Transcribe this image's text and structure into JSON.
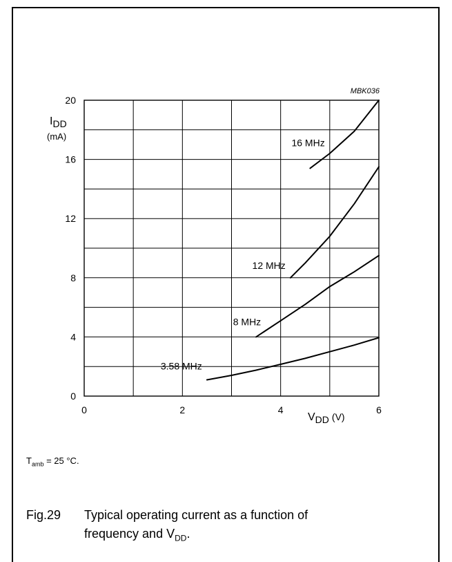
{
  "chart_data": {
    "type": "line",
    "code": "MBK036",
    "ylabel_main": "I",
    "ylabel_sub": "DD",
    "ylabel_unit": "(mA)",
    "xlabel_main": "V",
    "xlabel_sub": "DD",
    "xlabel_unit": "(V)",
    "xlim": [
      0,
      6
    ],
    "ylim": [
      0,
      20
    ],
    "x_ticks": [
      "0",
      "2",
      "4",
      "6"
    ],
    "y_ticks": [
      "0",
      "4",
      "8",
      "12",
      "16",
      "20"
    ],
    "grid": true,
    "series": [
      {
        "name": "3.58 MHz",
        "x": [
          2.5,
          3.0,
          3.5,
          4.0,
          4.5,
          5.0,
          5.5,
          6.0
        ],
        "y": [
          1.1,
          1.4,
          1.75,
          2.15,
          2.55,
          3.0,
          3.45,
          3.95
        ]
      },
      {
        "name": "8 MHz",
        "x": [
          3.5,
          4.0,
          4.5,
          5.0,
          5.5,
          6.0
        ],
        "y": [
          4.0,
          5.1,
          6.2,
          7.4,
          8.4,
          9.5
        ]
      },
      {
        "name": "12 MHz",
        "x": [
          4.2,
          4.5,
          5.0,
          5.5,
          6.0
        ],
        "y": [
          8.0,
          9.0,
          10.8,
          13.0,
          15.5
        ]
      },
      {
        "name": "16 MHz",
        "x": [
          4.6,
          5.0,
          5.5,
          6.0
        ],
        "y": [
          15.4,
          16.4,
          17.9,
          20.0
        ]
      }
    ]
  },
  "note": {
    "prefix": "T",
    "sub": "amb",
    "rest": " = 25 °C."
  },
  "caption": {
    "fig": "Fig.29",
    "line1": "Typical operating current as a function of",
    "line2_pre": "frequency and V",
    "line2_sub": "DD",
    "line2_post": "."
  }
}
